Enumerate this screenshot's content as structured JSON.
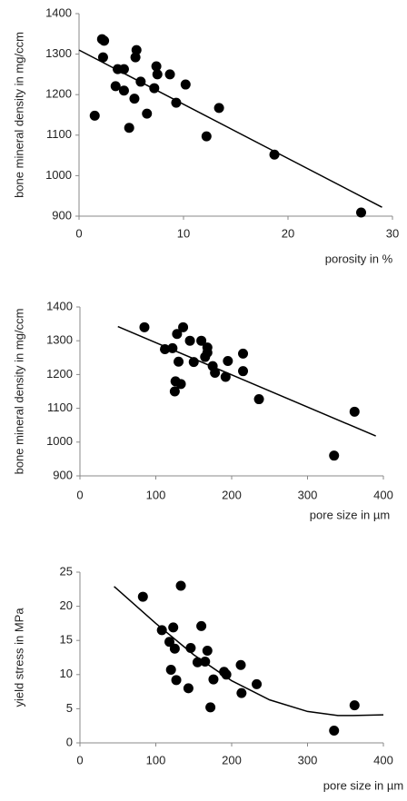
{
  "chart_data": [
    {
      "type": "scatter",
      "y_label": "bone mineral density in mg/ccm",
      "x_label": "porosity in %",
      "color": "#000000",
      "xlim": [
        0,
        30
      ],
      "xticks": [
        0,
        10,
        20,
        30
      ],
      "ylim": [
        900,
        1400
      ],
      "yticks": [
        900,
        1000,
        1100,
        1200,
        1300,
        1400
      ],
      "x": [
        1.5,
        2.2,
        2.4,
        2.3,
        3.5,
        3.7,
        4.3,
        4.3,
        4.8,
        5.5,
        5.4,
        5.3,
        5.9,
        6.5,
        7.4,
        7.5,
        7.2,
        8.7,
        9.3,
        10.2,
        13.4,
        12.2,
        18.7,
        27
      ],
      "values": [
        1148,
        1337,
        1333,
        1292,
        1221,
        1263,
        1263,
        1210,
        1118,
        1310,
        1292,
        1190,
        1232,
        1153,
        1270,
        1250,
        1216,
        1250,
        1180,
        1225,
        1167,
        1097,
        1052,
        909
      ],
      "trend": {
        "x": [
          0,
          29
        ],
        "values": [
          1310,
          922
        ]
      }
    },
    {
      "type": "scatter",
      "y_label": "bone mineral density in mg/ccm",
      "x_label": "pore size in µm",
      "color": "#000000",
      "xlim": [
        0,
        400
      ],
      "xticks": [
        0,
        100,
        200,
        300,
        400
      ],
      "ylim": [
        900,
        1400
      ],
      "yticks": [
        900,
        1000,
        1100,
        1200,
        1300,
        1400
      ],
      "x": [
        85,
        112,
        122,
        125,
        126,
        128,
        130,
        133,
        136,
        145,
        150,
        160,
        165,
        168,
        168,
        175,
        178,
        192,
        195,
        215,
        215,
        236,
        335,
        362
      ],
      "values": [
        1340,
        1275,
        1278,
        1150,
        1180,
        1320,
        1238,
        1172,
        1340,
        1300,
        1237,
        1300,
        1252,
        1280,
        1265,
        1225,
        1205,
        1193,
        1240,
        1262,
        1210,
        1127,
        960,
        1090
      ],
      "trend": {
        "x": [
          50,
          390
        ],
        "values": [
          1342,
          1018
        ]
      }
    },
    {
      "type": "scatter",
      "y_label": "yield stress in MPa",
      "x_label": "pore size in µm",
      "color": "#000000",
      "xlim": [
        0,
        400
      ],
      "xticks": [
        0,
        100,
        200,
        300,
        400
      ],
      "ylim": [
        0,
        25
      ],
      "yticks": [
        0,
        5,
        10,
        15,
        20,
        25
      ],
      "x": [
        83,
        108,
        118,
        120,
        123,
        125,
        127,
        133,
        143,
        146,
        155,
        160,
        165,
        168,
        172,
        176,
        190,
        193,
        212,
        213,
        233,
        335,
        362
      ],
      "values": [
        21.4,
        16.5,
        14.8,
        10.7,
        16.9,
        13.8,
        9.2,
        23,
        8,
        13.9,
        11.8,
        17.1,
        11.9,
        13.5,
        5.2,
        9.3,
        10.4,
        10,
        11.4,
        7.3,
        8.6,
        1.8,
        5.5
      ],
      "trend": {
        "x": [
          45,
          100,
          150,
          200,
          250,
          300,
          340,
          360,
          400
        ],
        "values": [
          22.9,
          17.5,
          12.9,
          9.1,
          6.3,
          4.6,
          4.0,
          4.0,
          4.1
        ]
      }
    }
  ]
}
